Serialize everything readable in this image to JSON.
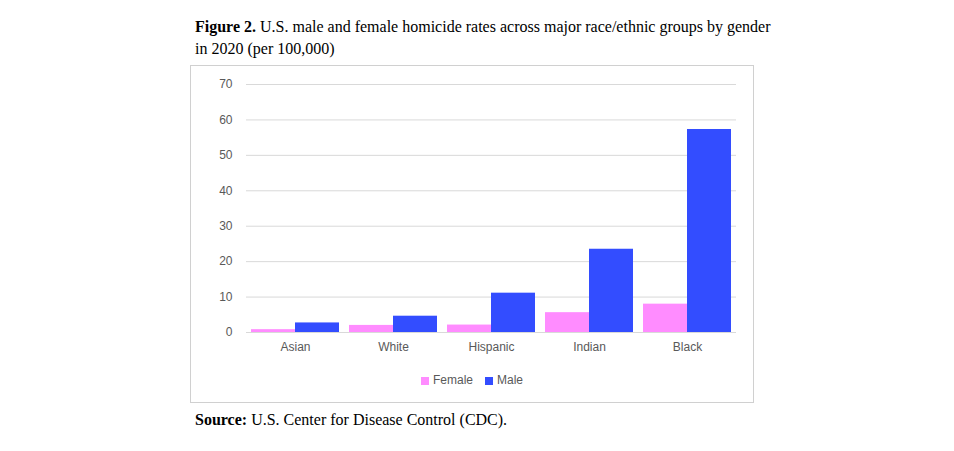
{
  "chart_data": {
    "type": "bar",
    "title": "Figure 2. U.S. male and female homicide rates across major race/ethnic groups by gender in 2020 (per 100,000)",
    "annotations": [
      "Source: U.S. Center for Disease Control (CDC)."
    ],
    "categories": [
      "Asian",
      "White",
      "Hispanic",
      "Indian",
      "Black"
    ],
    "series": [
      {
        "name": "Female",
        "color": "#ff8cff",
        "values": [
          0.8,
          2.0,
          2.1,
          5.6,
          8.0
        ]
      },
      {
        "name": "Male",
        "color": "#334dff",
        "values": [
          2.7,
          4.6,
          11.1,
          23.5,
          57.3
        ]
      }
    ],
    "ylim": [
      0,
      70
    ],
    "yticks": [
      0,
      10,
      20,
      30,
      40,
      50,
      60,
      70
    ],
    "grid": true,
    "legend": "bottom"
  }
}
